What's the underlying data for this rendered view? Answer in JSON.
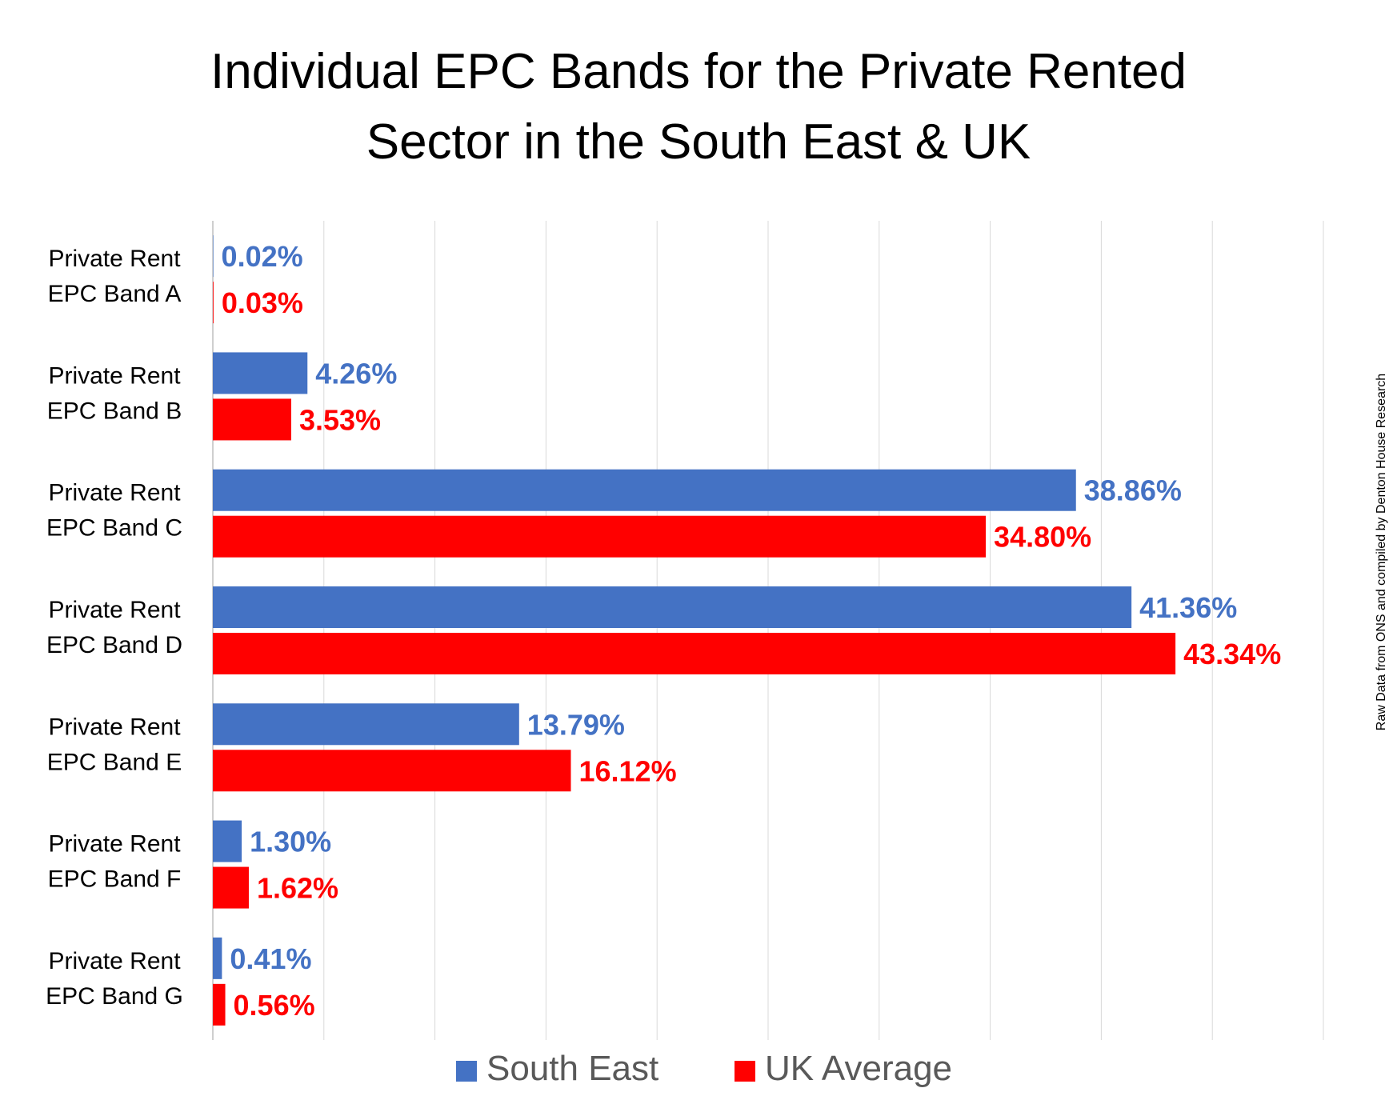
{
  "chart_data": {
    "type": "bar",
    "orientation": "horizontal",
    "title_lines": [
      "Individual EPC Bands for the Private Rented",
      "Sector in the South East & UK"
    ],
    "categories": [
      [
        "Private Rent",
        "EPC Band A"
      ],
      [
        "Private Rent",
        "EPC Band B"
      ],
      [
        "Private Rent",
        "EPC Band C"
      ],
      [
        "Private Rent",
        "EPC Band D"
      ],
      [
        "Private Rent",
        "EPC Band E"
      ],
      [
        "Private Rent",
        "EPC Band F"
      ],
      [
        "Private Rent",
        "EPC Band G"
      ]
    ],
    "series": [
      {
        "name": "South East",
        "color": "#4472C4",
        "values": [
          0.02,
          4.26,
          38.86,
          41.36,
          13.79,
          1.3,
          0.41
        ],
        "labels": [
          "0.02%",
          "4.26%",
          "38.86%",
          "41.36%",
          "13.79%",
          "1.30%",
          "0.41%"
        ]
      },
      {
        "name": "UK Average",
        "color": "#FF0000",
        "values": [
          0.03,
          3.53,
          34.8,
          43.34,
          16.12,
          1.62,
          0.56
        ],
        "labels": [
          "0.03%",
          "3.53%",
          "34.80%",
          "43.34%",
          "16.12%",
          "1.62%",
          "0.56%"
        ]
      }
    ],
    "xlim": [
      0,
      50
    ],
    "x_gridlines": [
      0,
      5,
      10,
      15,
      20,
      25,
      30,
      35,
      40,
      45,
      50
    ],
    "grid": true,
    "legend_position": "bottom",
    "source_note": "Raw Data from ONS and compiled by Denton House Research"
  }
}
